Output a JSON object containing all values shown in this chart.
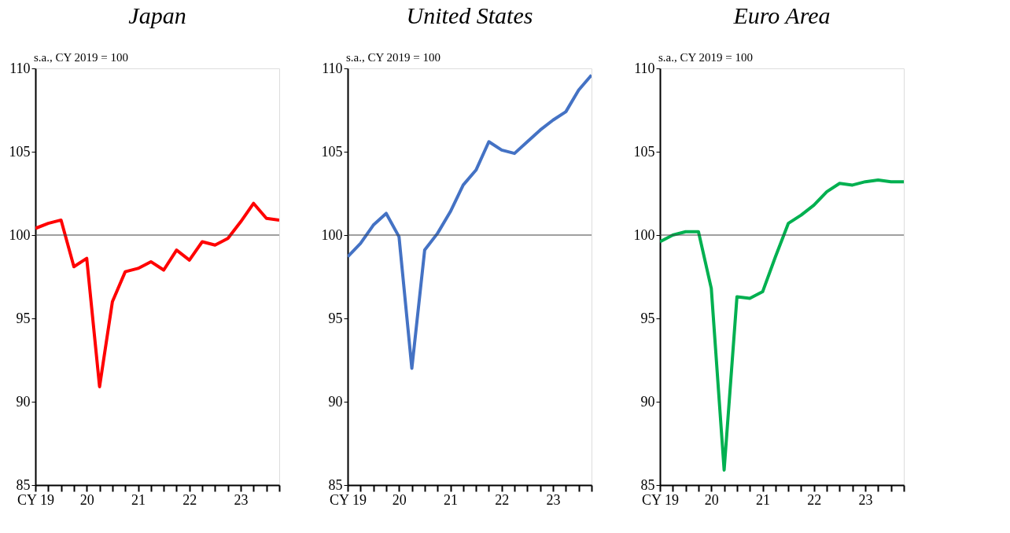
{
  "chart_data": [
    {
      "type": "line",
      "title": "Japan",
      "annotations": [
        "s.a., CY 2019 = 100"
      ],
      "categories": [
        "CY 19",
        null,
        null,
        null,
        "20",
        null,
        null,
        null,
        "21",
        null,
        null,
        null,
        "22",
        null,
        null,
        null,
        "23",
        null,
        null,
        null
      ],
      "ylim": [
        85,
        110
      ],
      "yticks": [
        85,
        90,
        95,
        100,
        105,
        110
      ],
      "grid": false,
      "line_style": "solid",
      "ref_lines": [
        {
          "axis": "y",
          "value": 100,
          "color": "#404040"
        }
      ],
      "series": [
        {
          "color": "#ff0000",
          "values": [
            100.4,
            100.7,
            100.9,
            98.1,
            98.6,
            90.9,
            96.0,
            97.8,
            98.0,
            98.4,
            97.9,
            99.1,
            98.5,
            99.6,
            99.4,
            99.8,
            100.8,
            101.9,
            101.0,
            100.9
          ]
        }
      ]
    },
    {
      "type": "line",
      "title": "United States",
      "annotations": [
        "s.a., CY 2019 = 100"
      ],
      "categories": [
        "CY 19",
        null,
        null,
        null,
        "20",
        null,
        null,
        null,
        "21",
        null,
        null,
        null,
        "22",
        null,
        null,
        null,
        "23",
        null,
        null,
        null
      ],
      "ylim": [
        85,
        110
      ],
      "yticks": [
        85,
        90,
        95,
        100,
        105,
        110
      ],
      "grid": false,
      "line_style": "solid",
      "ref_lines": [
        {
          "axis": "y",
          "value": 100,
          "color": "#404040"
        }
      ],
      "series": [
        {
          "color": "#4472c4",
          "values": [
            98.7,
            99.5,
            100.6,
            101.3,
            99.9,
            92.0,
            99.1,
            100.1,
            101.4,
            103.0,
            103.9,
            105.6,
            105.1,
            104.9,
            105.6,
            106.3,
            106.9,
            107.4,
            108.7,
            109.6
          ]
        }
      ]
    },
    {
      "type": "line",
      "title": "Euro Area",
      "annotations": [
        "s.a., CY 2019 = 100"
      ],
      "categories": [
        "CY 19",
        null,
        null,
        null,
        "20",
        null,
        null,
        null,
        "21",
        null,
        null,
        null,
        "22",
        null,
        null,
        null,
        "23",
        null,
        null,
        null
      ],
      "ylim": [
        85,
        110
      ],
      "yticks": [
        85,
        90,
        95,
        100,
        105,
        110
      ],
      "grid": false,
      "line_style": "solid",
      "ref_lines": [
        {
          "axis": "y",
          "value": 100,
          "color": "#404040"
        }
      ],
      "series": [
        {
          "color": "#00b050",
          "values": [
            99.6,
            100.0,
            100.2,
            100.2,
            96.8,
            85.9,
            96.3,
            96.2,
            96.6,
            98.7,
            100.7,
            101.2,
            101.8,
            102.6,
            103.1,
            103.0,
            103.2,
            103.3,
            103.2,
            103.2
          ]
        }
      ]
    }
  ]
}
